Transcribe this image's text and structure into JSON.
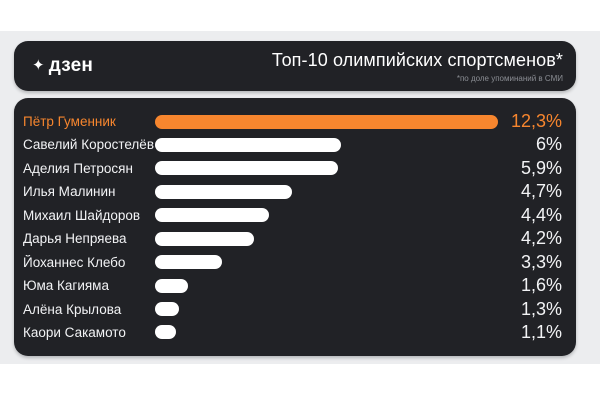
{
  "brand": {
    "logo_text": "дзен",
    "star_icon": "✦"
  },
  "header": {
    "title": "Топ-10 олимпийских спортсменов*",
    "footnote": "*по доле упоминаний в СМИ"
  },
  "colors": {
    "card_background": "#212226",
    "page_band": "#ecedef",
    "page_margin": "#ffffff",
    "accent_orange": "#f7862e",
    "bar_white": "#ffffff",
    "text_primary": "#f2f3f5",
    "footnote_gray": "#8b8e94"
  },
  "chart_data": {
    "type": "bar",
    "orientation": "horizontal",
    "title": "Топ-10 олимпийских спортсменов*",
    "subtitle": "*по доле упоминаний в СМИ",
    "unit": "%",
    "grid": false,
    "legend": false,
    "categories": [
      "Пётр Гуменник",
      "Савелий Коростелёв",
      "Аделия Петросян",
      "Илья Малинин",
      "Михаил Шайдоров",
      "Дарья Непряева",
      "Йоханнес Клебо",
      "Юма Кагияма",
      "Алёна Крылова",
      "Каори Сакамото"
    ],
    "values": [
      12.3,
      6,
      5.9,
      4.7,
      4.4,
      4.2,
      3.3,
      1.6,
      1.3,
      1.1
    ],
    "value_labels": [
      "12,3%",
      "6%",
      "5,9%",
      "4,7%",
      "4,4%",
      "4,2%",
      "3,3%",
      "1,6%",
      "1,3%",
      "1,1%"
    ],
    "highlighted_index": 0,
    "rows": [
      {
        "name": "Пётр Гуменник",
        "value": 12.3,
        "value_label": "12,3%",
        "bar_pct": 100,
        "highlighted": true
      },
      {
        "name": "Савелий Коростелёв",
        "value": 6,
        "value_label": "6%",
        "bar_pct": 54.2,
        "highlighted": false
      },
      {
        "name": "Аделия Петросян",
        "value": 5.9,
        "value_label": "5,9%",
        "bar_pct": 53.4,
        "highlighted": false
      },
      {
        "name": "Илья Малинин",
        "value": 4.7,
        "value_label": "4,7%",
        "bar_pct": 40.0,
        "highlighted": false
      },
      {
        "name": "Михаил Шайдоров",
        "value": 4.4,
        "value_label": "4,4%",
        "bar_pct": 33.1,
        "highlighted": false
      },
      {
        "name": "Дарья Непряева",
        "value": 4.2,
        "value_label": "4,2%",
        "bar_pct": 28.9,
        "highlighted": false
      },
      {
        "name": "Йоханнес Клебо",
        "value": 3.3,
        "value_label": "3,3%",
        "bar_pct": 19.6,
        "highlighted": false
      },
      {
        "name": "Юма Кагияма",
        "value": 1.6,
        "value_label": "1,6%",
        "bar_pct": 9.6,
        "highlighted": false
      },
      {
        "name": "Алёна Крылова",
        "value": 1.3,
        "value_label": "1,3%",
        "bar_pct": 6.9,
        "highlighted": false
      },
      {
        "name": "Каори Сакамото",
        "value": 1.1,
        "value_label": "1,1%",
        "bar_pct": 6.1,
        "highlighted": false
      }
    ]
  }
}
